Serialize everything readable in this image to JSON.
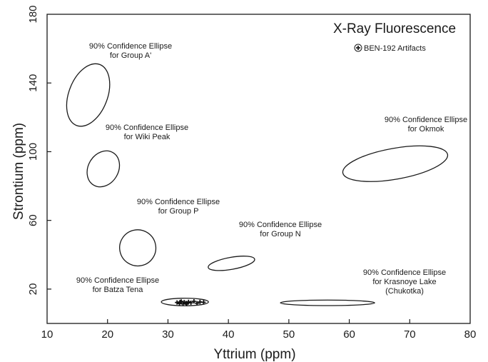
{
  "chart_data": {
    "type": "scatter",
    "title": "X-Ray Fluorescence",
    "xlabel": "Yttrium (ppm)",
    "ylabel": "Strontium (ppm)",
    "xlim": [
      10,
      80
    ],
    "ylim": [
      0,
      180
    ],
    "xticks": [
      10,
      20,
      30,
      40,
      50,
      60,
      70,
      80
    ],
    "yticks": [
      20,
      60,
      100,
      140,
      180
    ],
    "grid": false,
    "legend": {
      "placement": "top-right",
      "entries": [
        "BEN-192 Artifacts"
      ],
      "marker": "cross-in-circle"
    },
    "series": [
      {
        "name": "BEN-192 Artifacts",
        "marker": "cross",
        "points": [
          [
            31.5,
            12.2
          ],
          [
            31.9,
            11.6
          ],
          [
            32.2,
            12.8
          ],
          [
            32.5,
            11.4
          ],
          [
            32.7,
            12.4
          ],
          [
            33.0,
            11.9
          ],
          [
            33.4,
            12.6
          ],
          [
            33.8,
            12.0
          ],
          [
            34.3,
            12.9
          ],
          [
            34.8,
            11.8
          ],
          [
            35.3,
            12.5
          ],
          [
            32.0,
            12.5
          ],
          [
            33.1,
            11.3
          ],
          [
            35.9,
            12.3
          ]
        ]
      }
    ],
    "ellipses": [
      {
        "label_lines": [
          "90% Confidence Ellipse",
          "for Group A'"
        ],
        "cx": 16.8,
        "cy": 133,
        "rx": 3.2,
        "ry": 19,
        "angle_deg": 21
      },
      {
        "label_lines": [
          "90% Confidence Ellipse",
          "for Wiki Peak"
        ],
        "cx": 19.3,
        "cy": 90,
        "rx": 2.5,
        "ry": 11,
        "angle_deg": 31
      },
      {
        "label_lines": [
          "90% Confidence Ellipse",
          "for Group P"
        ],
        "cx": 25.0,
        "cy": 44,
        "rx": 3.0,
        "ry": 10.5,
        "angle_deg": 33
      },
      {
        "label_lines": [
          "90% Confidence Ellipse",
          "for Group N"
        ],
        "cx": 40.5,
        "cy": 35,
        "rx": 3.9,
        "ry": 3.5,
        "angle_deg": -10
      },
      {
        "label_lines": [
          "90% Confidence Ellipse",
          "for Okmok"
        ],
        "cx": 67.6,
        "cy": 93,
        "rx": 8.8,
        "ry": 9,
        "angle_deg": -10
      },
      {
        "label_lines": [
          "90% Confidence Ellipse",
          "for Krasnoye Lake",
          "(Chukotka)"
        ],
        "cx": 56.4,
        "cy": 12,
        "rx": 7.8,
        "ry": 1.6,
        "angle_deg": 0
      },
      {
        "label_lines": [
          "90% Confidence Ellipse",
          "for Batza Tena"
        ],
        "cx": 32.8,
        "cy": 12.5,
        "rx": 3.9,
        "ry": 2.2,
        "angle_deg": 0
      }
    ]
  }
}
